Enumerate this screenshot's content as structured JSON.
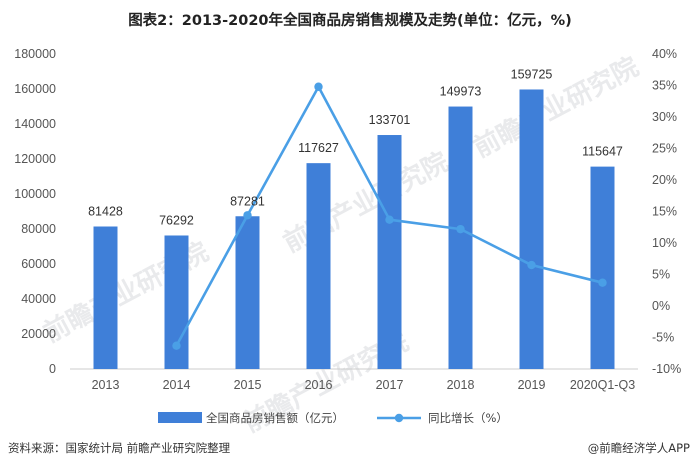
{
  "title": "图表2：2013-2020年全国商品房销售规模及走势(单位：亿元，%)",
  "source": "资料来源：国家统计局 前瞻产业研究院整理",
  "credit": "@前瞻经济学人APP",
  "watermark": "前瞻产业研究院",
  "colors": {
    "bar": "#3f7fd8",
    "line": "#4a9fe6",
    "axis": "#cccccc",
    "grid": "#e6e6e6"
  },
  "chart_data": {
    "type": "bar+line",
    "categories": [
      "2013",
      "2014",
      "2015",
      "2016",
      "2017",
      "2018",
      "2019",
      "2020Q1-Q3"
    ],
    "series": [
      {
        "name": "全国商品房销售额（亿元）",
        "type": "bar",
        "axis": "left",
        "values": [
          81428,
          76292,
          87281,
          117627,
          133701,
          149973,
          159725,
          115647
        ]
      },
      {
        "name": "同比增长（%）",
        "type": "line",
        "axis": "right",
        "values": [
          null,
          -6.3,
          14.4,
          34.8,
          13.7,
          12.2,
          6.5,
          3.7
        ]
      }
    ],
    "y_left": {
      "min": 0,
      "max": 180000,
      "ticks": [
        "0",
        "20000",
        "40000",
        "60000",
        "80000",
        "100000",
        "120000",
        "140000",
        "160000",
        "180000"
      ]
    },
    "y_right": {
      "min": -10,
      "max": 40,
      "ticks": [
        "-10%",
        "-5%",
        "0%",
        "5%",
        "10%",
        "15%",
        "20%",
        "25%",
        "30%",
        "35%",
        "40%"
      ]
    },
    "data_labels": [
      "81428",
      "76292",
      "87281",
      "117627",
      "133701",
      "149973",
      "159725",
      "115647"
    ],
    "legend_position": "bottom",
    "grid": false
  }
}
